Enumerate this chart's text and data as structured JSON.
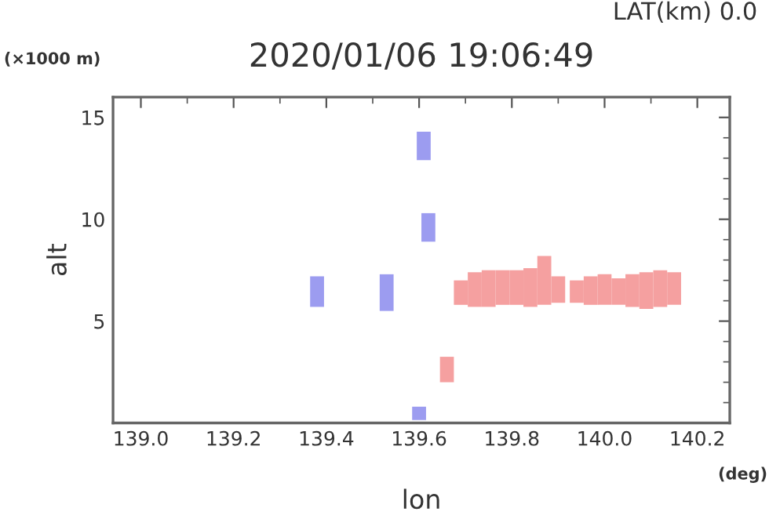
{
  "chart_data": {
    "type": "bar",
    "title": "2020/01/06 19:06:49",
    "xlabel": "lon",
    "ylabel": "alt",
    "annotations": [
      "LAT(km) 0.0",
      "(×1000 m)",
      "(deg)"
    ],
    "xlim": [
      138.94,
      140.27
    ],
    "xticks": [
      {
        "value": 139.0,
        "label": "139.0"
      },
      139.2,
      139.4,
      139.6,
      139.8,
      {
        "value": 140.0,
        "label": "140.0"
      },
      140.2
    ],
    "ylim": [
      0,
      16
    ],
    "yticks": [
      5,
      10,
      15
    ],
    "series": [
      {
        "color": "#9c9cf0",
        "x": [
          139.38,
          139.53,
          139.6,
          139.61,
          139.62
        ],
        "base": [
          5.7,
          5.5,
          0.15,
          12.9,
          8.9
        ],
        "values": [
          1.5,
          1.8,
          0.65,
          1.4,
          1.4
        ]
      },
      {
        "color": "#f5a0a0",
        "x": [
          139.66,
          139.69,
          139.72,
          139.75,
          139.78,
          139.81,
          139.84,
          139.87,
          139.9,
          139.94,
          139.97,
          140.0,
          140.03,
          140.06,
          140.09,
          140.12,
          140.15
        ],
        "base": [
          2.0,
          5.8,
          5.7,
          5.7,
          5.8,
          5.8,
          5.7,
          5.8,
          5.9,
          5.9,
          5.8,
          5.8,
          5.8,
          5.7,
          5.6,
          5.7,
          5.8
        ],
        "values": [
          1.25,
          1.2,
          1.7,
          1.8,
          1.7,
          1.7,
          1.9,
          2.4,
          1.3,
          1.1,
          1.4,
          1.5,
          1.3,
          1.6,
          1.8,
          1.8,
          1.6
        ]
      }
    ],
    "grid": false,
    "legend": false
  }
}
